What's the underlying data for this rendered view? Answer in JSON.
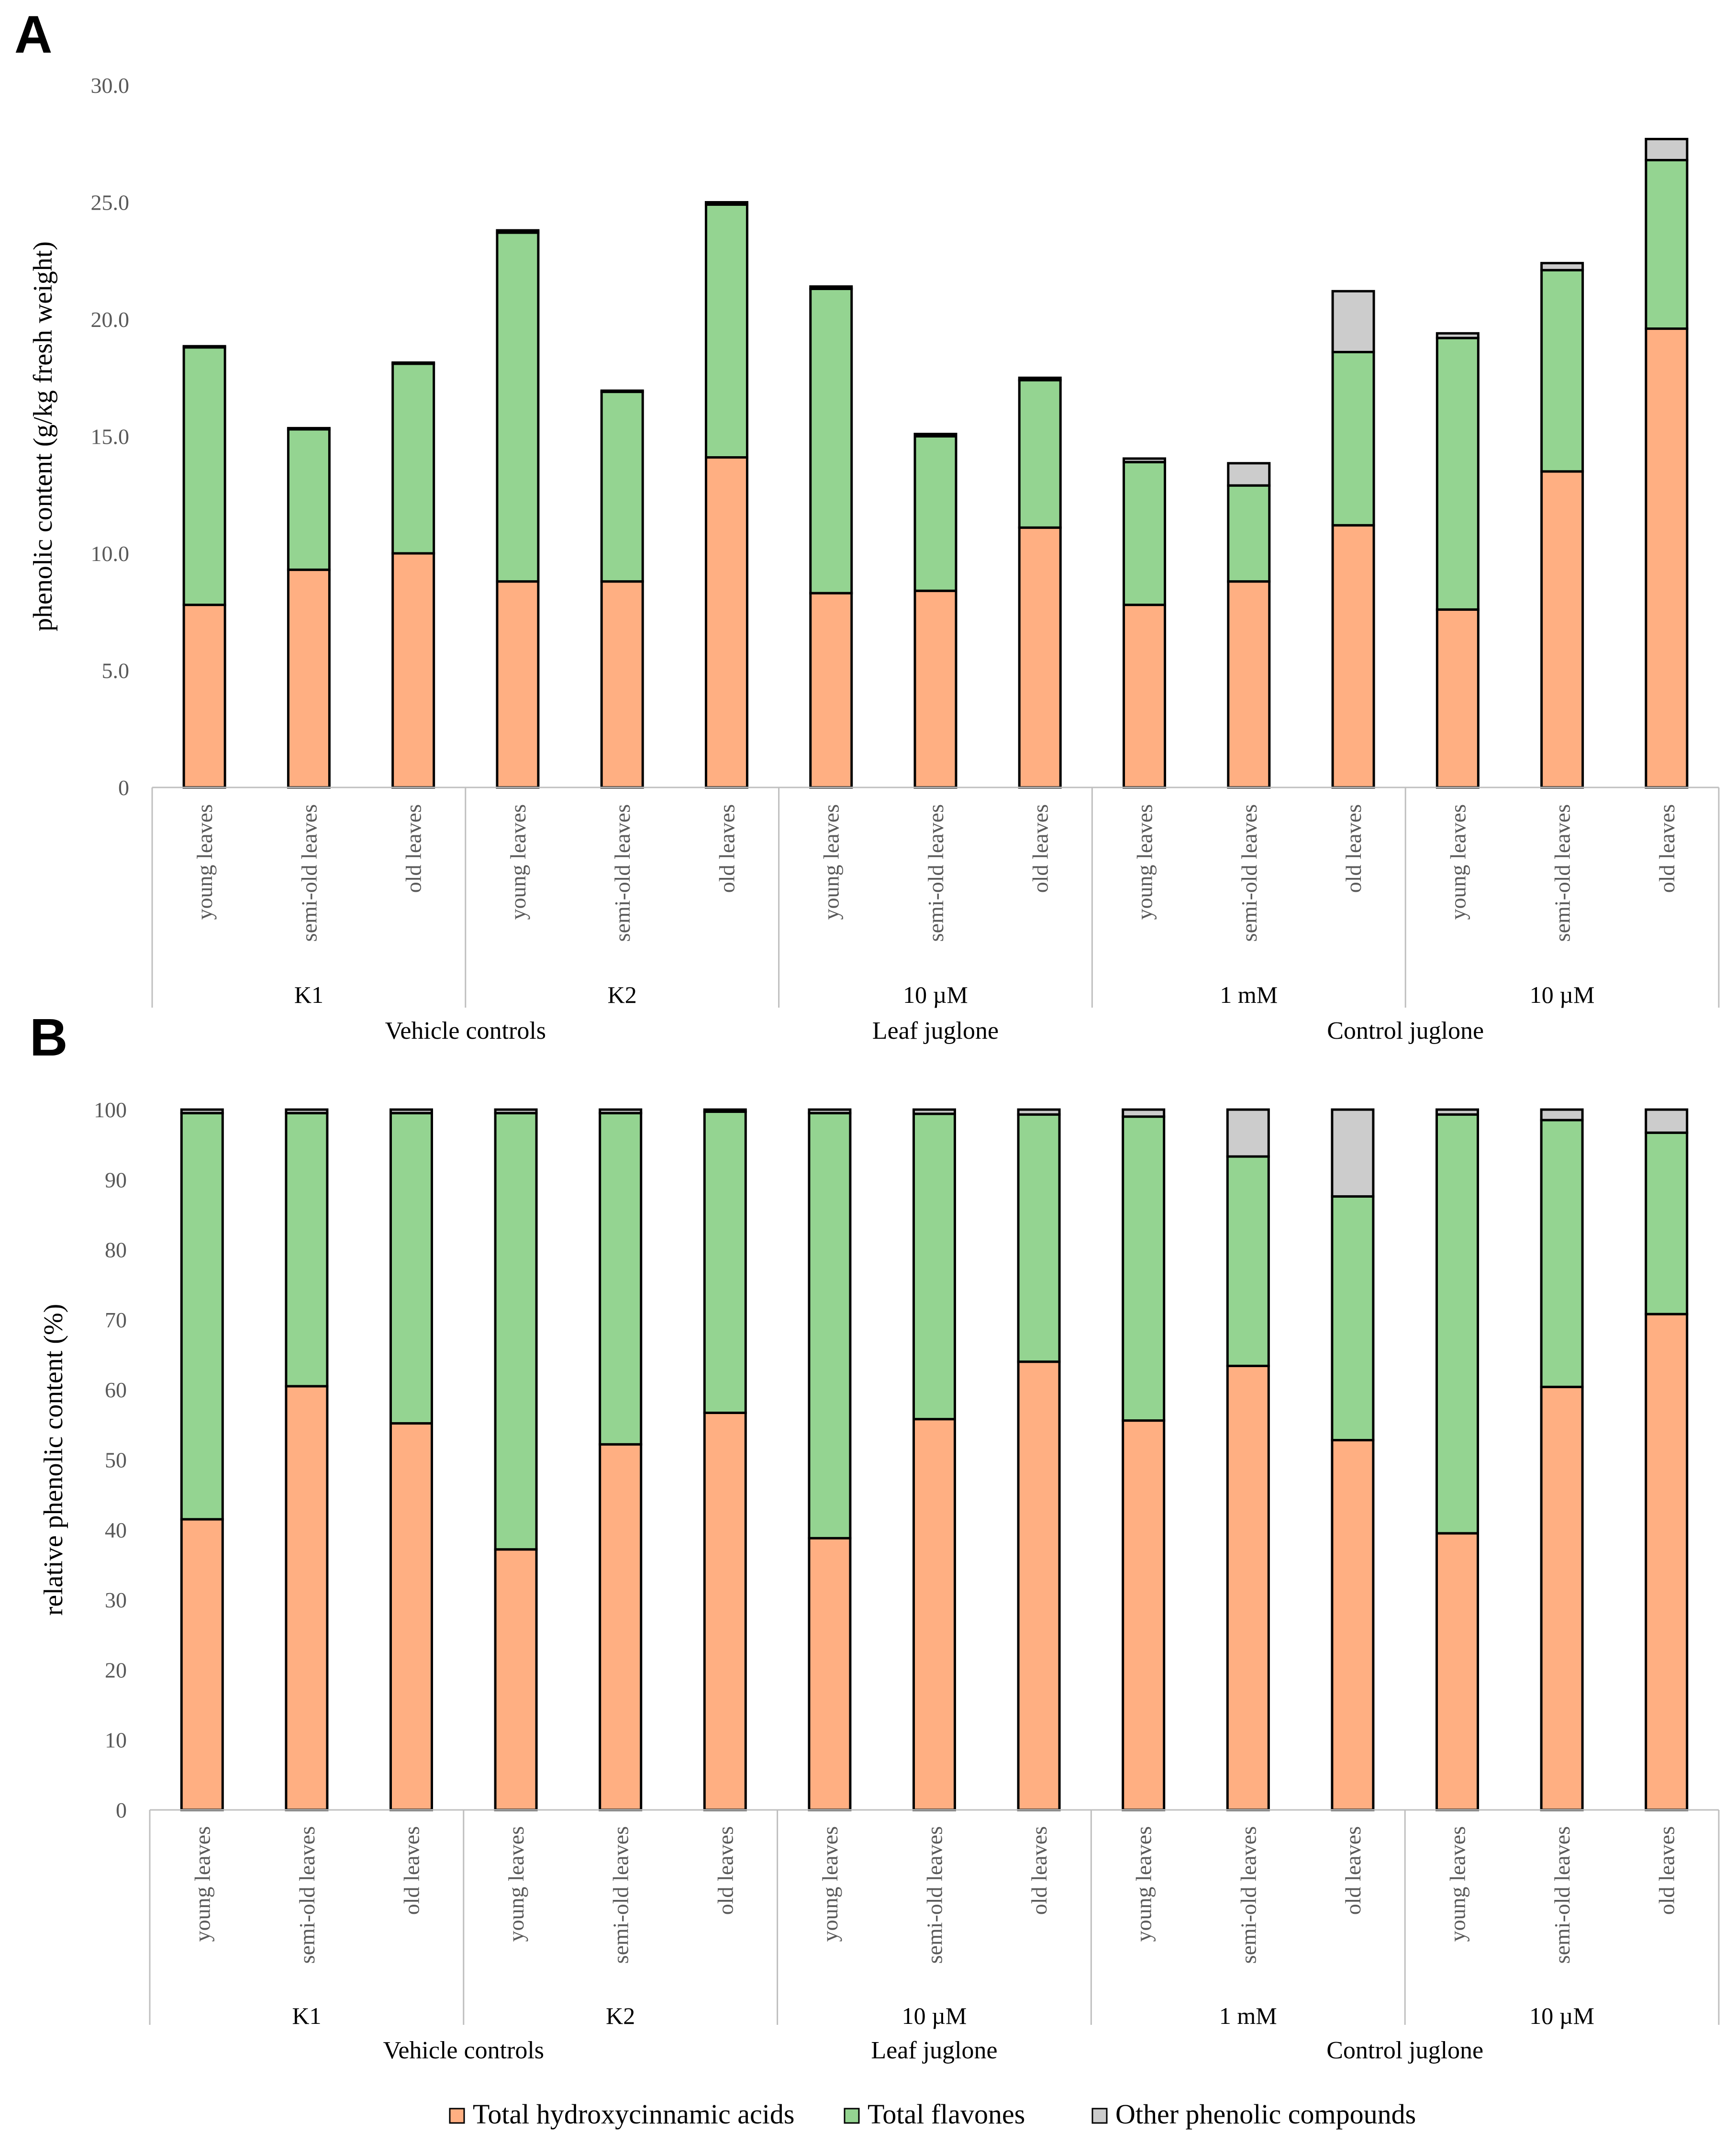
{
  "legend": {
    "items": [
      {
        "name": "Total hydroxycinnamic acids",
        "color": "#FFAF82"
      },
      {
        "name": "Total flavones",
        "color": "#94D491"
      },
      {
        "name": "Other phenolic compounds",
        "color": "#CCCCCC"
      }
    ]
  },
  "chart_data": [
    {
      "panel": "A",
      "type": "bar",
      "stacked": true,
      "ylabel": "phenolic content (g/kg fresh weight)",
      "ylim": [
        0,
        30
      ],
      "yticks": [
        0,
        5,
        10,
        15,
        20,
        25,
        30
      ],
      "ytick_labels": [
        "0",
        "5.0",
        "10.0",
        "15.0",
        "20.0",
        "25.0",
        "30.0"
      ],
      "categories": [
        "young leaves",
        "semi-old leaves",
        "old leaves",
        "young leaves",
        "semi-old leaves",
        "old leaves",
        "young leaves",
        "semi-old leaves",
        "old leaves",
        "young leaves",
        "semi-old leaves",
        "old leaves",
        "young leaves",
        "semi-old leaves",
        "old leaves"
      ],
      "groups": [
        "K1",
        "K2",
        "10 µM",
        "1 mM",
        "10 µM"
      ],
      "supergroups": [
        {
          "label": "Vehicle controls",
          "groups": [
            0,
            1
          ]
        },
        {
          "label": "Leaf juglone",
          "groups": [
            2
          ]
        },
        {
          "label": "Control juglone",
          "groups": [
            3,
            4
          ]
        }
      ],
      "series": [
        {
          "name": "Total hydroxycinnamic acids",
          "color": "#FFAF82",
          "values": [
            7.8,
            9.3,
            10.0,
            8.8,
            8.8,
            14.1,
            8.3,
            8.4,
            11.1,
            7.8,
            8.8,
            11.2,
            7.6,
            13.5,
            19.6
          ]
        },
        {
          "name": "Total flavones",
          "color": "#94D491",
          "values": [
            11.0,
            6.0,
            8.1,
            14.9,
            8.1,
            10.8,
            13.0,
            6.6,
            6.3,
            6.1,
            4.1,
            7.4,
            11.6,
            8.6,
            7.2
          ]
        },
        {
          "name": "Other phenolic compounds",
          "color": "#CCCCCC",
          "values": [
            0.05,
            0.05,
            0.05,
            0.1,
            0.05,
            0.1,
            0.1,
            0.1,
            0.1,
            0.15,
            0.95,
            2.6,
            0.2,
            0.3,
            0.9
          ]
        }
      ]
    },
    {
      "panel": "B",
      "type": "bar",
      "stacked": true,
      "ylabel": "relative phenolic content (%)",
      "ylim": [
        0,
        100
      ],
      "yticks": [
        0,
        10,
        20,
        30,
        40,
        50,
        60,
        70,
        80,
        90,
        100
      ],
      "ytick_labels": [
        "0",
        "10",
        "20",
        "30",
        "40",
        "50",
        "60",
        "70",
        "80",
        "90",
        "100"
      ],
      "categories": [
        "young leaves",
        "semi-old leaves",
        "old leaves",
        "young leaves",
        "semi-old leaves",
        "old leaves",
        "young leaves",
        "semi-old leaves",
        "old leaves",
        "young leaves",
        "semi-old leaves",
        "old leaves",
        "young leaves",
        "semi-old leaves",
        "old leaves"
      ],
      "groups": [
        "K1",
        "K2",
        "10 µM",
        "1 mM",
        "10 µM"
      ],
      "supergroups": [
        {
          "label": "Vehicle controls",
          "groups": [
            0,
            1
          ]
        },
        {
          "label": "Leaf juglone",
          "groups": [
            2
          ]
        },
        {
          "label": "Control juglone",
          "groups": [
            3,
            4
          ]
        }
      ],
      "series": [
        {
          "name": "Total hydroxycinnamic acids",
          "color": "#FFAF82",
          "values": [
            41.5,
            60.5,
            55.2,
            37.2,
            52.2,
            56.7,
            38.8,
            55.8,
            64.0,
            55.6,
            63.4,
            52.8,
            39.5,
            60.4,
            70.8
          ]
        },
        {
          "name": "Total flavones",
          "color": "#94D491",
          "values": [
            58.0,
            39.0,
            44.3,
            62.3,
            47.3,
            43.0,
            60.7,
            43.6,
            35.3,
            43.4,
            29.9,
            34.8,
            59.8,
            38.1,
            25.9
          ]
        },
        {
          "name": "Other phenolic compounds",
          "color": "#CCCCCC",
          "values": [
            0.5,
            0.5,
            0.5,
            0.5,
            0.5,
            0.3,
            0.5,
            0.6,
            0.7,
            1.0,
            6.7,
            12.4,
            0.7,
            1.5,
            3.3
          ]
        }
      ]
    }
  ]
}
